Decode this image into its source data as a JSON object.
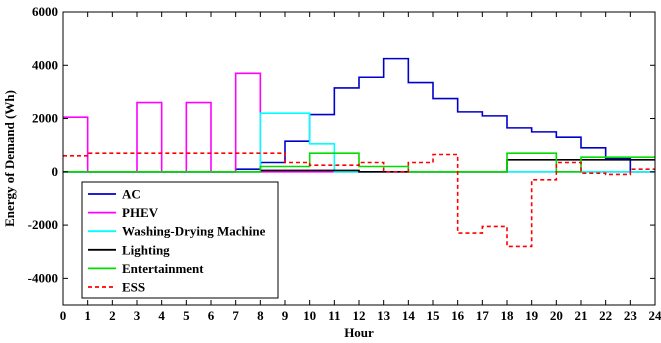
{
  "chart_data": {
    "type": "line",
    "title": "",
    "xlabel": "Hour",
    "ylabel": "Energy of Demand (Wh)",
    "xlim": [
      0,
      24
    ],
    "ylim": [
      -5000,
      6000
    ],
    "xticks": [
      "0",
      "1",
      "2",
      "3",
      "4",
      "5",
      "6",
      "7",
      "8",
      "9",
      "10",
      "11",
      "12",
      "13",
      "14",
      "15",
      "16",
      "17",
      "18",
      "19",
      "20",
      "21",
      "22",
      "23",
      "24"
    ],
    "yticks": [
      "-4000",
      "-2000",
      "0",
      "2000",
      "4000",
      "6000"
    ],
    "grid": false,
    "legend_position": "bottom-left",
    "step": true,
    "series": [
      {
        "name": "AC",
        "color": "#0000cc",
        "dash": "solid",
        "values": [
          0,
          0,
          0,
          0,
          0,
          0,
          0,
          100,
          350,
          1150,
          2150,
          3150,
          3550,
          4250,
          3350,
          2750,
          2250,
          2100,
          1650,
          1500,
          1300,
          900,
          500,
          0
        ]
      },
      {
        "name": "PHEV",
        "color": "#ff00ff",
        "dash": "solid",
        "values": [
          2050,
          0,
          0,
          2600,
          0,
          2600,
          0,
          3700,
          0,
          0,
          0,
          0,
          0,
          0,
          0,
          0,
          0,
          0,
          0,
          0,
          0,
          0,
          0,
          0
        ]
      },
      {
        "name": "Washing-Drying Machine",
        "color": "#00ffff",
        "dash": "solid",
        "values": [
          0,
          0,
          0,
          0,
          0,
          0,
          0,
          0,
          2200,
          2200,
          1050,
          0,
          0,
          0,
          0,
          0,
          0,
          0,
          0,
          0,
          0,
          0,
          0,
          0
        ]
      },
      {
        "name": "Lighting",
        "color": "#000000",
        "dash": "solid",
        "values": [
          0,
          0,
          0,
          0,
          0,
          0,
          0,
          0,
          50,
          50,
          50,
          50,
          0,
          0,
          0,
          0,
          0,
          0,
          450,
          450,
          450,
          450,
          450,
          450
        ]
      },
      {
        "name": "Entertainment",
        "color": "#00dd00",
        "dash": "solid",
        "values": [
          0,
          0,
          0,
          0,
          0,
          0,
          0,
          0,
          200,
          200,
          700,
          700,
          200,
          200,
          0,
          0,
          0,
          0,
          700,
          700,
          0,
          550,
          550,
          550
        ]
      },
      {
        "name": "ESS",
        "color": "#ff0000",
        "dash": "dashed",
        "values": [
          600,
          700,
          700,
          700,
          700,
          700,
          700,
          700,
          700,
          350,
          250,
          250,
          350,
          0,
          350,
          650,
          -2300,
          -2050,
          -2800,
          -300,
          350,
          -50,
          -100,
          100
        ]
      }
    ]
  }
}
